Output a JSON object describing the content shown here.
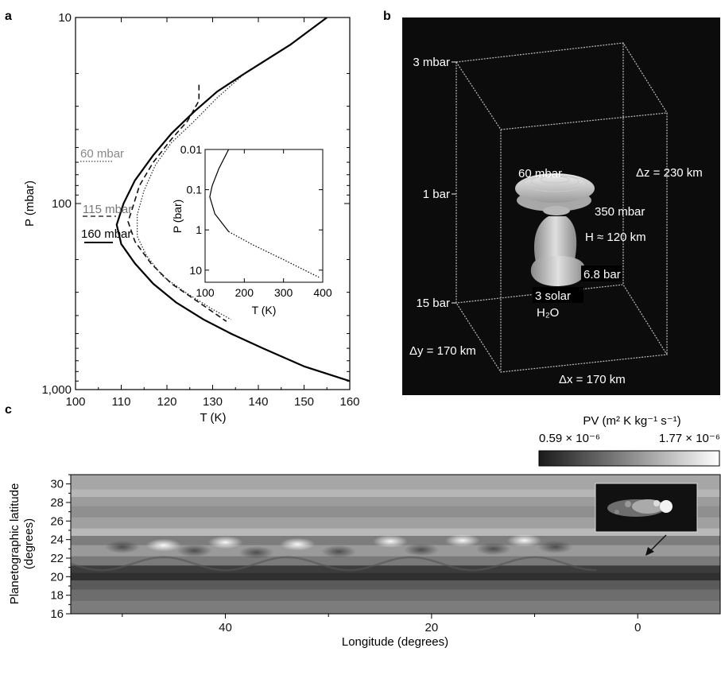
{
  "panels": {
    "a": "a",
    "b": "b",
    "c": "c"
  },
  "chart_data": [
    {
      "panel": "a",
      "type": "line",
      "xlabel": "T (K)",
      "ylabel": "P (mbar)",
      "xlim": [
        100,
        160
      ],
      "ylim": [
        10,
        1000
      ],
      "yscale": "log",
      "yaxis_inverted": true,
      "x_ticks": [
        "100",
        "110",
        "120",
        "130",
        "140",
        "150",
        "160"
      ],
      "y_ticks": [
        "10",
        "100",
        "1,000"
      ],
      "series": [
        {
          "style": "solid",
          "label": "160 mbar",
          "points": [
            [
              155,
              10
            ],
            [
              147,
              14
            ],
            [
              137,
              20
            ],
            [
              131,
              25
            ],
            [
              126,
              32
            ],
            [
              121,
              42
            ],
            [
              117,
              55
            ],
            [
              113,
              75
            ],
            [
              110.5,
              100
            ],
            [
              109,
              130
            ],
            [
              110,
              165
            ],
            [
              113,
              210
            ],
            [
              117,
              270
            ],
            [
              122,
              340
            ],
            [
              128,
              420
            ],
            [
              134,
              500
            ],
            [
              141,
              600
            ],
            [
              150,
              750
            ],
            [
              160,
              900
            ]
          ]
        },
        {
          "style": "dashed",
          "label": "115 mbar",
          "points": [
            [
              127,
              23
            ],
            [
              127,
              28
            ],
            [
              124.5,
              36
            ],
            [
              121,
              45
            ],
            [
              117,
              60
            ],
            [
              114,
              80
            ],
            [
              112.5,
              105
            ],
            [
              111.5,
              125
            ],
            [
              113,
              160
            ],
            [
              116.5,
              210
            ],
            [
              121,
              270
            ],
            [
              127,
              340
            ],
            [
              133,
              430
            ]
          ]
        },
        {
          "style": "dotted",
          "label": "60 mbar",
          "points": [
            [
              137,
              20
            ],
            [
              131,
              27
            ],
            [
              126,
              36
            ],
            [
              121,
              47
            ],
            [
              117.5,
              62
            ],
            [
              115,
              85
            ],
            [
              113.5,
              115
            ],
            [
              113.5,
              150
            ],
            [
              115.5,
              190
            ],
            [
              119,
              245
            ],
            [
              124,
              300
            ],
            [
              130,
              370
            ],
            [
              134,
              420
            ]
          ]
        }
      ],
      "inset": {
        "xlabel": "T (K)",
        "ylabel": "P (bar)",
        "xlim": [
          100,
          400
        ],
        "ylim": [
          0.01,
          20
        ],
        "yscale": "log",
        "x_ticks": [
          "100",
          "200",
          "300",
          "400"
        ],
        "y_ticks": [
          "0.01",
          "0.1",
          "1",
          "10"
        ],
        "series": [
          {
            "style": "solid",
            "points": [
              [
                160,
                0.01
              ],
              [
                135,
                0.03
              ],
              [
                118,
                0.08
              ],
              [
                112,
                0.15
              ],
              [
                125,
                0.4
              ],
              [
                160,
                1.1
              ]
            ]
          },
          {
            "style": "dotted",
            "points": [
              [
                160,
                1.1
              ],
              [
                220,
                2.3
              ],
              [
                300,
                5.5
              ],
              [
                390,
                15
              ]
            ]
          }
        ]
      }
    },
    {
      "panel": "b",
      "type": "other",
      "left_labels": [
        "3 mbar",
        "1 bar",
        "15 bar"
      ],
      "labels": {
        "p60": "60 mbar",
        "dz": "Δz = 230 km",
        "p350": "350 mbar",
        "H": "H ≈ 120 km",
        "p68": "6.8 bar",
        "solar": "3 solar",
        "h2o": "H₂O",
        "dy": "Δy = 170 km",
        "dx": "Δx = 170 km"
      }
    },
    {
      "panel": "c",
      "type": "heatmap",
      "xlabel": "Longitude (degrees)",
      "ylabel_line1": "Planetographic latitude",
      "ylabel_line2": "(degrees)",
      "xlim": [
        55,
        -8
      ],
      "ylim": [
        16,
        31
      ],
      "x_ticks": [
        "40",
        "20",
        "0"
      ],
      "y_ticks": [
        "16",
        "18",
        "20",
        "22",
        "24",
        "26",
        "28",
        "30"
      ],
      "colorbar": {
        "title": "PV (m² K kg⁻¹ s⁻¹)",
        "min_label": "0.59 × 10⁻⁶",
        "max_label": "1.77 × 10⁻⁶",
        "min": 5.9e-07,
        "max": 1.77e-06
      }
    }
  ]
}
